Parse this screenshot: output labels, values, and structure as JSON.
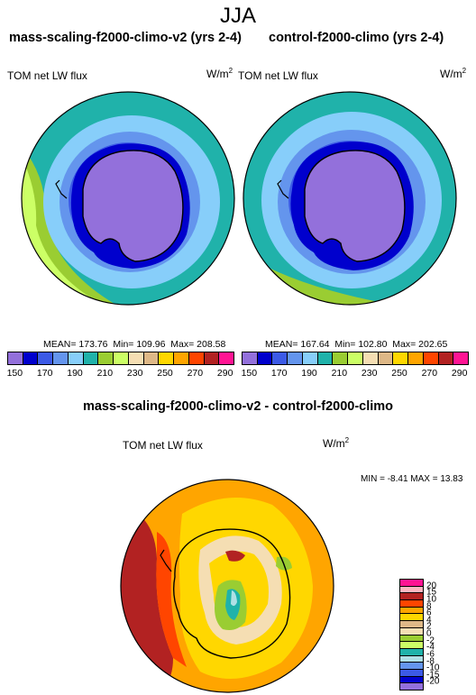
{
  "season": "JJA",
  "panels": [
    {
      "title": "mass-scaling-f2000-climo-v2 (yrs 2-4)",
      "variable": "TOM net LW flux",
      "units": "W/m",
      "units_sup": "2",
      "stats": {
        "mean": "MEAN= 173.76",
        "min": "Min= 109.96",
        "max": "Max= 208.58"
      }
    },
    {
      "title": "control-f2000-climo (yrs 2-4)",
      "variable": "TOM net LW flux",
      "units": "W/m",
      "units_sup": "2",
      "stats": {
        "mean": "MEAN= 167.64",
        "min": "Min= 102.80",
        "max": "Max= 202.65"
      }
    }
  ],
  "colorbar_top": {
    "colors": [
      "#9370db",
      "#0000cd",
      "#3c5ae6",
      "#6495ed",
      "#87cefa",
      "#20b2aa",
      "#9acd32",
      "#ccff66",
      "#f5deb3",
      "#deb887",
      "#ffd700",
      "#ffa500",
      "#ff4500",
      "#b22222",
      "#ff1493"
    ],
    "labels": [
      "150",
      "170",
      "190",
      "210",
      "230",
      "250",
      "270",
      "290"
    ]
  },
  "diff": {
    "title": "mass-scaling-f2000-climo-v2 - control-f2000-climo",
    "variable": "TOM net LW flux",
    "units": "W/m",
    "units_sup": "2",
    "minmax": "MIN =  -8.41 MAX =  13.83"
  },
  "colorbar_diff": {
    "colors": [
      "#ff1493",
      "#ffb6c1",
      "#b22222",
      "#ff4500",
      "#ffa500",
      "#ffd700",
      "#deb887",
      "#f5deb3",
      "#9acd32",
      "#ccff66",
      "#20b2aa",
      "#b0e0e6",
      "#6495ed",
      "#3c5ae6",
      "#0000cd",
      "#9370db"
    ],
    "labels": [
      "20",
      "15",
      "10",
      "8",
      "6",
      "4",
      "2",
      "0",
      "-2",
      "-4",
      "-6",
      "-8",
      "-10",
      "-15",
      "-20"
    ]
  }
}
